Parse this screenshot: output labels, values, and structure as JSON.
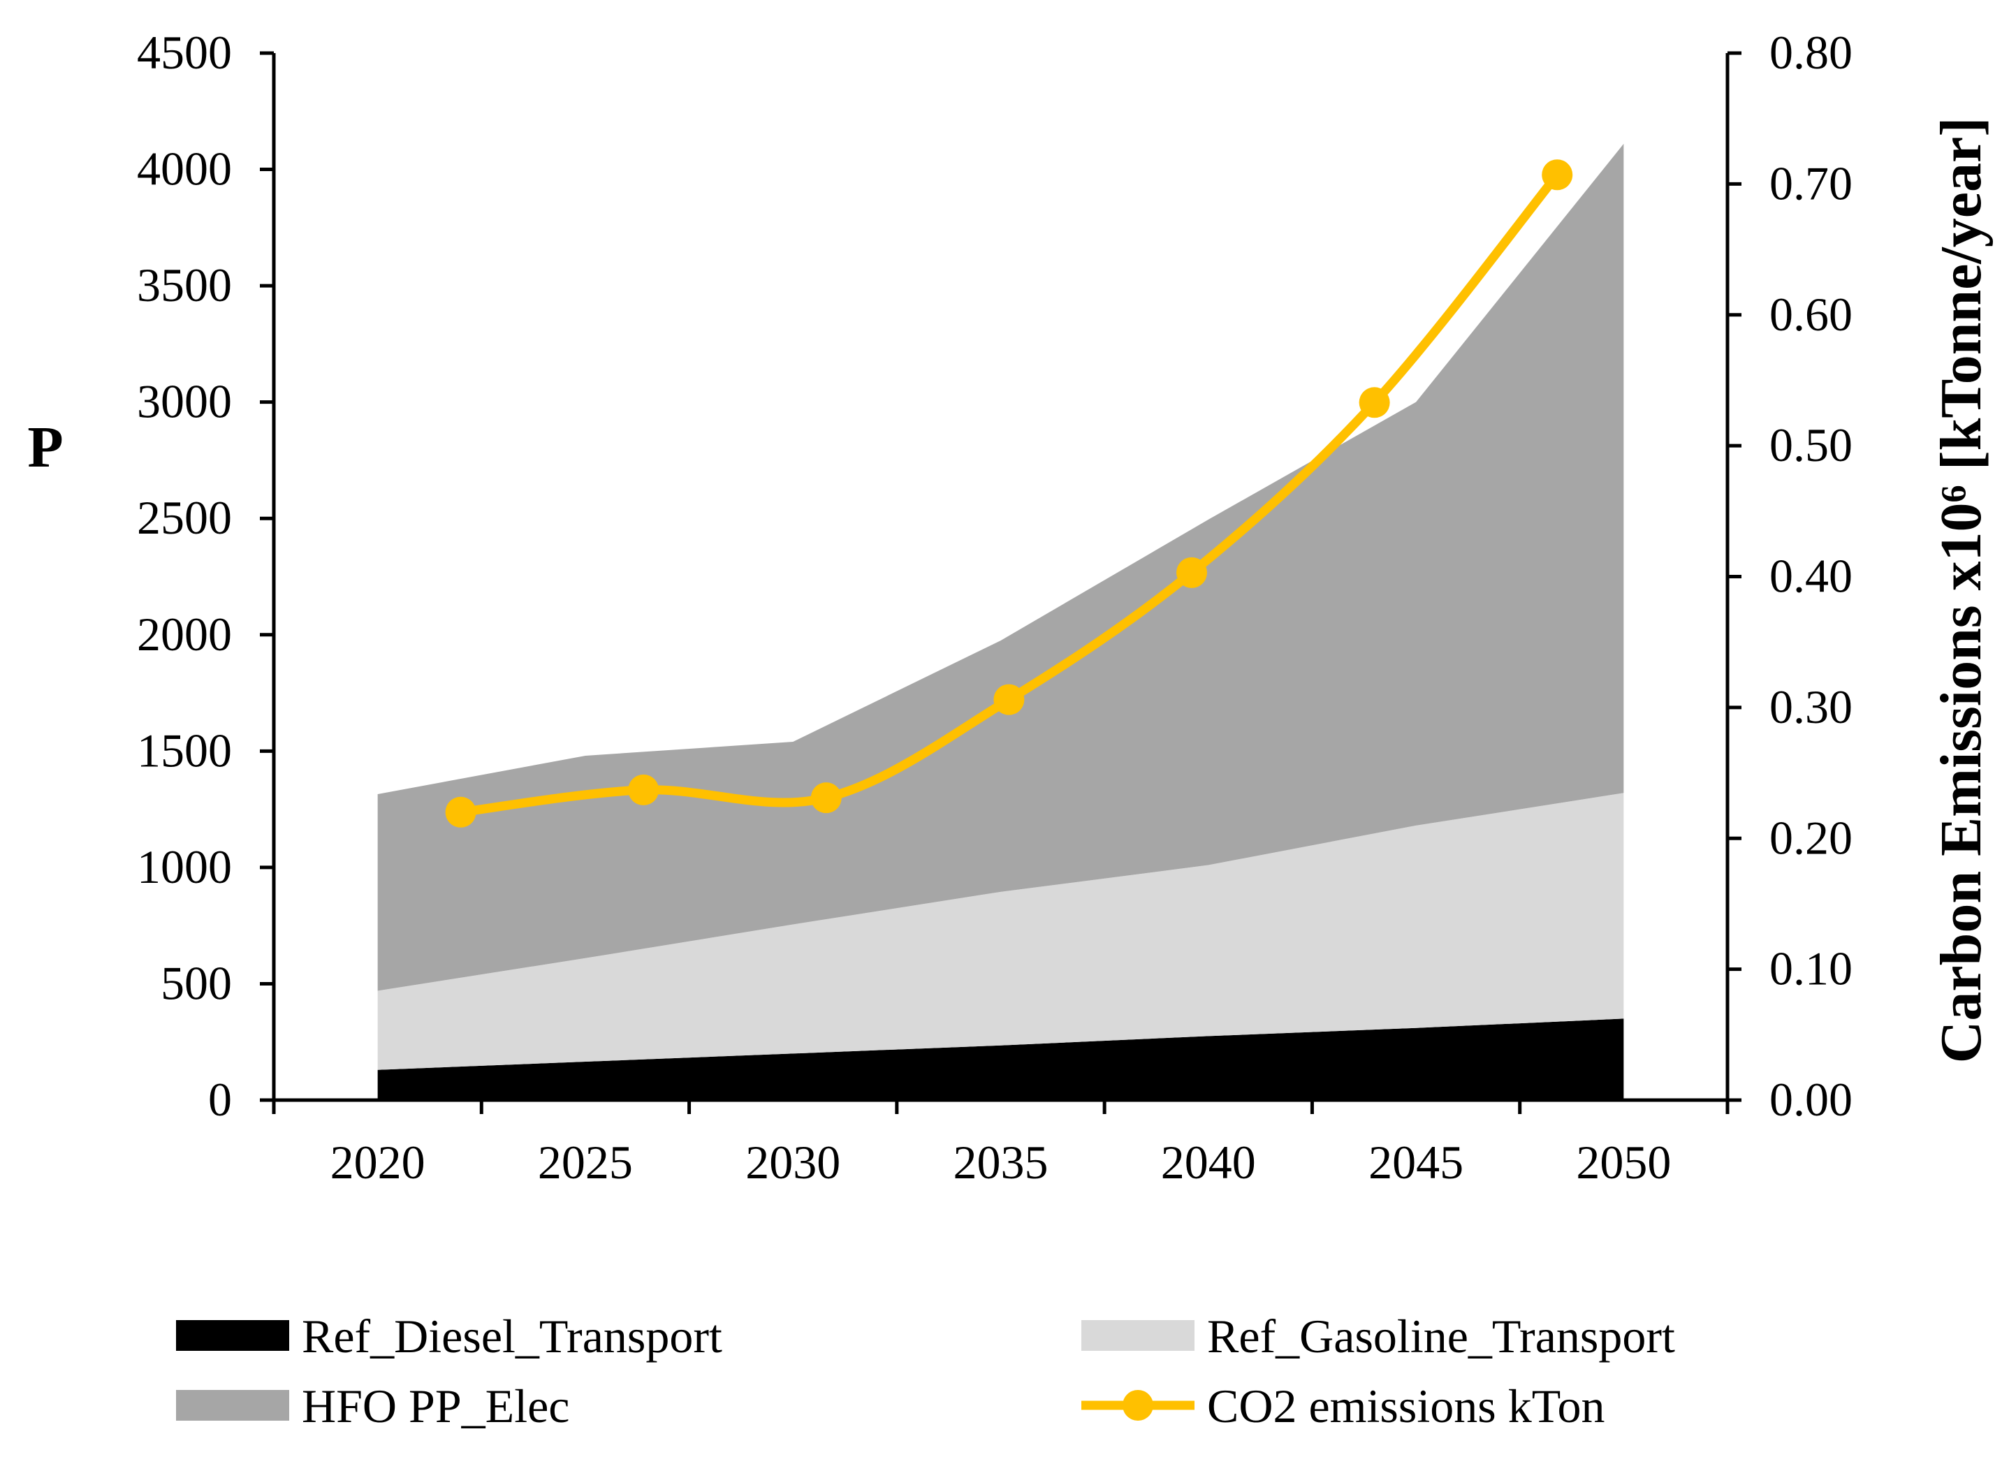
{
  "chart_data": {
    "type": "area",
    "title": "",
    "x": [
      2020,
      2025,
      2030,
      2035,
      2040,
      2045,
      2050
    ],
    "xlabel": "",
    "ylabel": "P",
    "ylim": [
      0,
      4500
    ],
    "yticks": [
      "4500",
      "4000",
      "3500",
      "3000",
      "2500",
      "2000",
      "1500",
      "1000",
      "500",
      "0"
    ],
    "y2label": "Carbon Emissions x10⁶ [kTonne/year]",
    "y2lim": [
      0,
      0.8
    ],
    "y2ticks": [
      "0.80",
      "0.70",
      "0.60",
      "0.50",
      "0.40",
      "0.30",
      "0.20",
      "0.10",
      "0.00"
    ],
    "xticks": [
      "2020",
      "2025",
      "2030",
      "2035",
      "2040",
      "2045",
      "2050"
    ],
    "stacked_series": [
      {
        "name": "Ref_Diesel_Transport",
        "color": "#000000",
        "values": [
          130,
          165,
          200,
          235,
          275,
          310,
          350
        ]
      },
      {
        "name": "Ref_Gasoline_Transport",
        "color": "#d9d9d9",
        "values": [
          340,
          445,
          555,
          660,
          735,
          870,
          970
        ]
      },
      {
        "name": "HFO PP_Elec",
        "color": "#a6a6a6",
        "values": [
          845,
          870,
          785,
          1080,
          1485,
          1820,
          2790
        ]
      }
    ],
    "line_series": {
      "name": "CO2 emissions  kTon",
      "color": "#ffc000",
      "axis": "secondary",
      "x": [
        2022,
        2026.4,
        2030.8,
        2035.2,
        2039.6,
        2044,
        2048.4
      ],
      "values": [
        0.22,
        0.237,
        0.231,
        0.306,
        0.403,
        0.533,
        0.707
      ]
    },
    "legend": {
      "placement": "bottom",
      "items": [
        {
          "label": "Ref_Diesel_Transport",
          "kind": "area",
          "color": "#000000"
        },
        {
          "label": "Ref_Gasoline_Transport",
          "kind": "area",
          "color": "#d9d9d9"
        },
        {
          "label": "HFO PP_Elec",
          "kind": "area",
          "color": "#a6a6a6"
        },
        {
          "label": "CO2 emissions  kTon",
          "kind": "line-marker",
          "color": "#ffc000"
        }
      ]
    }
  }
}
